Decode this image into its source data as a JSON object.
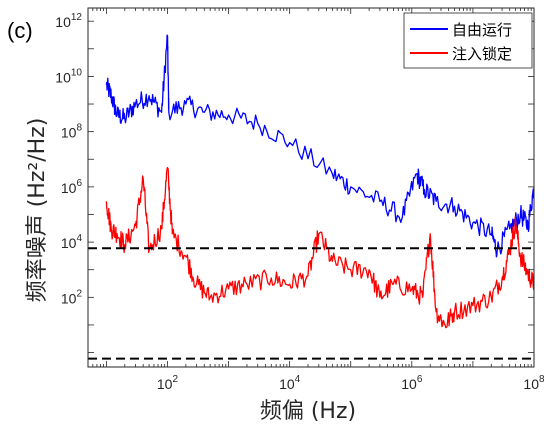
{
  "chart_data": {
    "type": "line",
    "panel_label": "(c)",
    "xlabel": "频偏 (Hz)",
    "ylabel": "频率噪声 (Hz²/Hz)",
    "xscale": "log",
    "yscale": "log",
    "xlim": [
      5,
      100000000
    ],
    "ylim": [
      0.3,
      3000000000000
    ],
    "x_ticks": [
      {
        "value": 100,
        "base": "10",
        "exp": "2"
      },
      {
        "value": 10000,
        "base": "10",
        "exp": "4"
      },
      {
        "value": 1000000,
        "base": "10",
        "exp": "6"
      },
      {
        "value": 100000000,
        "base": "10",
        "exp": "8"
      }
    ],
    "y_ticks": [
      {
        "value": 100,
        "base": "10",
        "exp": "2"
      },
      {
        "value": 10000,
        "base": "10",
        "exp": "4"
      },
      {
        "value": 1000000,
        "base": "10",
        "exp": "6"
      },
      {
        "value": 100000000,
        "base": "10",
        "exp": "8"
      },
      {
        "value": 10000000000,
        "base": "10",
        "exp": "10"
      },
      {
        "value": 1000000000000,
        "base": "10",
        "exp": "12"
      }
    ],
    "legend_position": "top-right",
    "series": [
      {
        "name": "自由运行",
        "color": "#0000ff",
        "points": [
          [
            10,
            5000000000
          ],
          [
            12,
            2000000000
          ],
          [
            15,
            400000000
          ],
          [
            20,
            300000000
          ],
          [
            30,
            1000000000
          ],
          [
            50,
            2000000000
          ],
          [
            80,
            500000000
          ],
          [
            100,
            300000000000
          ],
          [
            105,
            500000000
          ],
          [
            200,
            1000000000
          ],
          [
            400,
            500000000
          ],
          [
            1000,
            400000000
          ],
          [
            3000,
            200000000
          ],
          [
            10000,
            40000000
          ],
          [
            50000,
            3000000
          ],
          [
            100000,
            1000000
          ],
          [
            300000,
            300000
          ],
          [
            700000,
            80000
          ],
          [
            1200000,
            3000000
          ],
          [
            1600000,
            800000
          ],
          [
            2500000,
            300000
          ],
          [
            5000000,
            200000
          ],
          [
            10000000,
            50000
          ],
          [
            20000000,
            20000
          ],
          [
            25000000,
            5000
          ],
          [
            40000000,
            30000
          ],
          [
            60000000,
            100000
          ],
          [
            80000000,
            40000
          ],
          [
            100000000,
            1000000
          ]
        ]
      },
      {
        "name": "注入锁定",
        "color": "#ff0000",
        "points": [
          [
            10,
            300000
          ],
          [
            12,
            30000
          ],
          [
            15,
            20000
          ],
          [
            20,
            8000
          ],
          [
            30,
            40000
          ],
          [
            40,
            2000000
          ],
          [
            50,
            5000
          ],
          [
            80,
            30000
          ],
          [
            100,
            5000000
          ],
          [
            120,
            20000
          ],
          [
            200,
            3000
          ],
          [
            300,
            300
          ],
          [
            500,
            100
          ],
          [
            1000,
            200
          ],
          [
            2000,
            300
          ],
          [
            5000,
            500
          ],
          [
            10000,
            300
          ],
          [
            20000,
            600
          ],
          [
            30000,
            20000
          ],
          [
            50000,
            2000
          ],
          [
            100000,
            1000
          ],
          [
            200000,
            1000
          ],
          [
            300000,
            100
          ],
          [
            500000,
            300
          ],
          [
            1000000,
            200
          ],
          [
            1500000,
            100
          ],
          [
            2000000,
            20000
          ],
          [
            2500000,
            30
          ],
          [
            3500000,
            10
          ],
          [
            5000000,
            30
          ],
          [
            10000000,
            50
          ],
          [
            20000000,
            100
          ],
          [
            30000000,
            500
          ],
          [
            40000000,
            5000
          ],
          [
            50000000,
            50000
          ],
          [
            60000000,
            3000
          ],
          [
            80000000,
            700
          ],
          [
            100000000,
            300
          ]
        ]
      }
    ],
    "reference_lines": [
      {
        "y": 6000,
        "style": "dashed",
        "color": "#000000"
      },
      {
        "y": 0.6,
        "style": "dashed",
        "color": "#000000"
      }
    ]
  }
}
